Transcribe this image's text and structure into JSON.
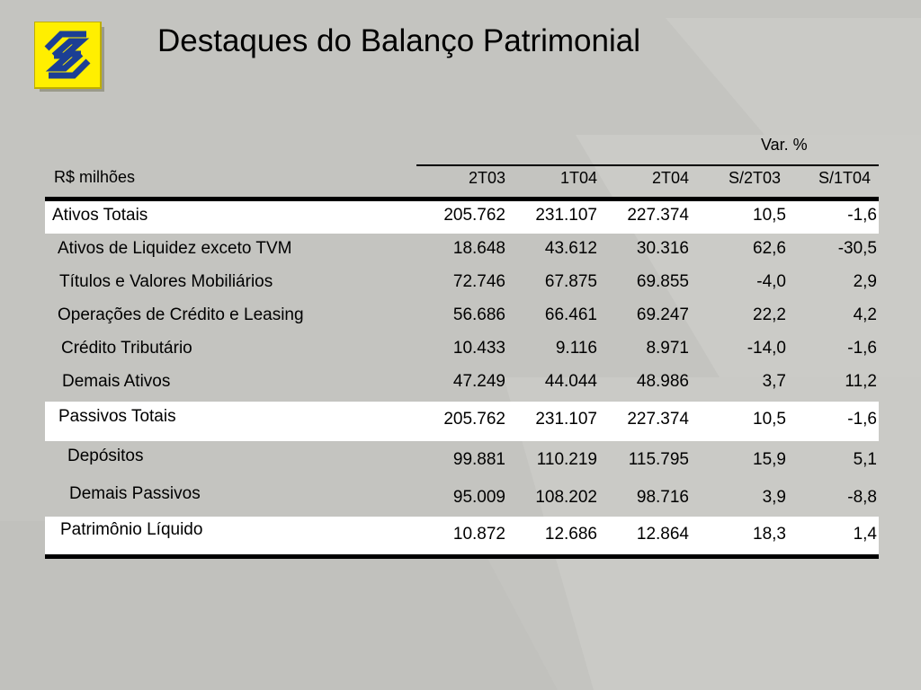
{
  "header": {
    "title": "Destaques do Balanço Patrimonial"
  },
  "table": {
    "unit_label": "R$ milhões",
    "var_label": "Var. %",
    "columns": [
      "2T03",
      "1T04",
      "2T04",
      "S/2T03",
      "S/1T04"
    ],
    "rows": [
      {
        "label": "Ativos Totais",
        "values": [
          "205.762",
          "231.107",
          "227.374",
          "10,5",
          "-1,6"
        ]
      },
      {
        "label": "Ativos de Liquidez exceto TVM",
        "values": [
          "18.648",
          "43.612",
          "30.316",
          "62,6",
          "-30,5"
        ]
      },
      {
        "label": "Títulos e Valores Mobiliários",
        "values": [
          "72.746",
          "67.875",
          "69.855",
          "-4,0",
          "2,9"
        ]
      },
      {
        "label": "Operações de Crédito e Leasing",
        "values": [
          "56.686",
          "66.461",
          "69.247",
          "22,2",
          "4,2"
        ]
      },
      {
        "label": "Crédito Tributário",
        "values": [
          "10.433",
          "9.116",
          "8.971",
          "-14,0",
          "-1,6"
        ]
      },
      {
        "label": "Demais Ativos",
        "values": [
          "47.249",
          "44.044",
          "48.986",
          "3,7",
          "11,2"
        ]
      },
      {
        "label": "Passivos Totais",
        "values": [
          "205.762",
          "231.107",
          "227.374",
          "10,5",
          "-1,6"
        ]
      },
      {
        "label": "Depósitos",
        "values": [
          "99.881",
          "110.219",
          "115.795",
          "15,9",
          "5,1"
        ]
      },
      {
        "label": "Demais Passivos",
        "values": [
          "95.009",
          "108.202",
          "98.716",
          "3,9",
          "-8,8"
        ]
      },
      {
        "label": "Patrimônio Líquido",
        "values": [
          "10.872",
          "12.686",
          "12.864",
          "18,3",
          "1,4"
        ]
      }
    ]
  },
  "colors": {
    "background": "#c4c4c0",
    "logo_yellow": "#ffef00",
    "logo_blue": "#1c3f94"
  }
}
